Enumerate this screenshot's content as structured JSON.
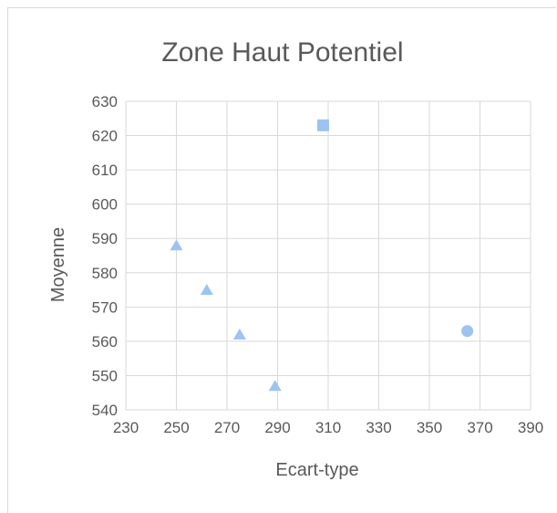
{
  "chart_data": {
    "type": "scatter",
    "title": "Zone Haut Potentiel",
    "xlabel": "Ecart-type",
    "ylabel": "Moyenne",
    "xlim": [
      230,
      390
    ],
    "ylim": [
      540,
      630
    ],
    "xticks": [
      230,
      250,
      270,
      290,
      310,
      330,
      350,
      370,
      390
    ],
    "yticks": [
      540,
      550,
      560,
      570,
      580,
      590,
      600,
      610,
      620,
      630
    ],
    "grid": true,
    "marker_color": "#9dc3f2",
    "points": [
      {
        "x": 250,
        "y": 588,
        "marker": "triangle"
      },
      {
        "x": 262,
        "y": 575,
        "marker": "triangle"
      },
      {
        "x": 275,
        "y": 562,
        "marker": "triangle"
      },
      {
        "x": 289,
        "y": 547,
        "marker": "triangle"
      },
      {
        "x": 308,
        "y": 623,
        "marker": "square"
      },
      {
        "x": 365,
        "y": 563,
        "marker": "circle"
      }
    ]
  }
}
